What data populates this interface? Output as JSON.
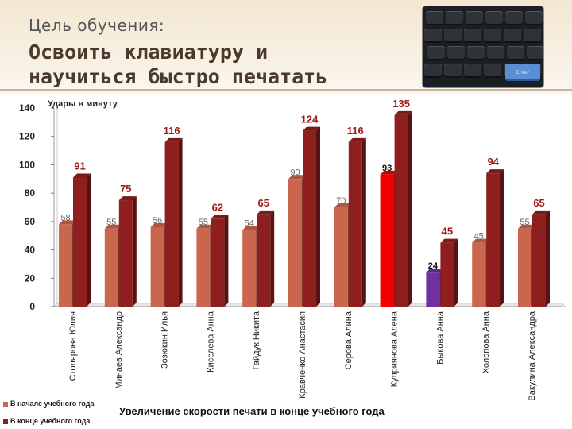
{
  "header": {
    "subtitle": "Цель обучения:",
    "title": "Освоить клавиатуру и\nнаучиться быстро печатать"
  },
  "keyboard_image": {
    "keys": [
      "Enter"
    ]
  },
  "colors": {
    "start": "#c9664d",
    "end": "#8f1f1f",
    "highlight_red": "#f00000",
    "highlight_purple": "#7030a0"
  },
  "chart_data": {
    "type": "bar",
    "title": "Увеличение скорости печати в конце учебного года",
    "ylabel": "Удары в минуту",
    "ylim": [
      0,
      140
    ],
    "yticks": [
      0,
      20,
      40,
      60,
      80,
      100,
      120,
      140
    ],
    "categories": [
      "Столярова Юлия",
      "Минаев Александр",
      "Зозюкин Илья",
      "Киселева Анна",
      "Гайдук Никита",
      "Кравченко Анастасия",
      "Серова Алина",
      "Куприянова Алена",
      "Быкова Анна",
      "Холопова Анна",
      "Вакулина Александра"
    ],
    "series": [
      {
        "name": "В начале учебного года",
        "values": [
          58,
          55,
          56,
          55,
          54,
          90,
          70,
          93,
          24,
          45,
          55
        ]
      },
      {
        "name": "В конце учебного года",
        "values": [
          91,
          75,
          116,
          62,
          65,
          124,
          116,
          135,
          45,
          94,
          65
        ]
      }
    ],
    "legend_position": "bottom-left",
    "grid": false
  }
}
